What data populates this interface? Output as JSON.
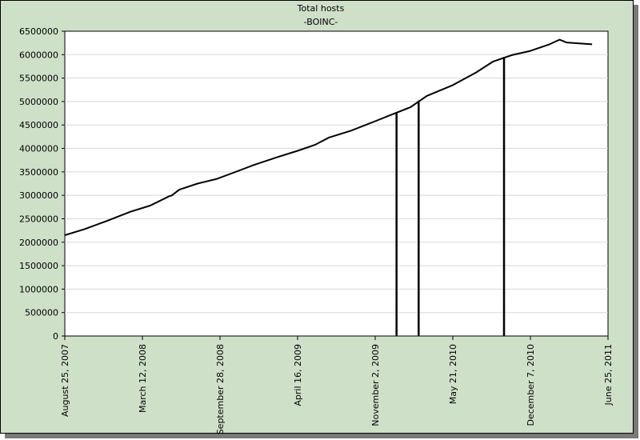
{
  "chart_data": {
    "type": "line",
    "title": "Total hosts",
    "subtitle": "-BOINC-",
    "xlabel": "",
    "ylabel": "",
    "x_range": [
      "2007-08-25",
      "2011-06-25"
    ],
    "ylim": [
      0,
      6500000
    ],
    "grid": true,
    "legend": "none",
    "line_color": "#000000",
    "plot_background": "#ffffff",
    "frame_background": "#cfe0c9",
    "y_ticks": [
      "0",
      "500000",
      "1000000",
      "1500000",
      "2000000",
      "2500000",
      "3000000",
      "3500000",
      "4000000",
      "4500000",
      "5000000",
      "5500000",
      "6000000",
      "6500000"
    ],
    "y_tick_values": [
      0,
      500000,
      1000000,
      1500000,
      2000000,
      2500000,
      3000000,
      3500000,
      4000000,
      4500000,
      5000000,
      5500000,
      6000000,
      6500000
    ],
    "x_ticks": [
      "August 25, 2007",
      "March 12, 2008",
      "September 28, 2008",
      "April 16, 2009",
      "November 2, 2009",
      "May 21, 2010",
      "December 7, 2010",
      "June 25, 2011"
    ],
    "x_tick_values": [
      "2007-08-25",
      "2008-03-12",
      "2008-09-28",
      "2009-04-16",
      "2009-11-02",
      "2010-05-21",
      "2010-12-07",
      "2011-06-25"
    ],
    "series": [
      {
        "points": [
          [
            "2007-08-25",
            2150000
          ],
          [
            "2007-10-15",
            2280000
          ],
          [
            "2007-12-10",
            2450000
          ],
          [
            "2008-02-10",
            2650000
          ],
          [
            "2008-04-01",
            2780000
          ],
          [
            "2008-05-20",
            2980000
          ],
          [
            "2008-05-27",
            3000000
          ],
          [
            "2008-06-15",
            3120000
          ],
          [
            "2008-08-01",
            3250000
          ],
          [
            "2008-09-20",
            3350000
          ],
          [
            "2008-11-01",
            3480000
          ],
          [
            "2008-12-25",
            3650000
          ],
          [
            "2009-02-25",
            3820000
          ],
          [
            "2009-04-16",
            3950000
          ],
          [
            "2009-06-01",
            4080000
          ],
          [
            "2009-07-05",
            4230000
          ],
          [
            "2009-09-01",
            4380000
          ],
          [
            "2009-11-02",
            4580000
          ],
          [
            "2009-12-20",
            4740000
          ],
          [
            "2010-02-01",
            4880000
          ],
          [
            "2010-03-15",
            5120000
          ],
          [
            "2010-05-21",
            5350000
          ],
          [
            "2010-07-20",
            5620000
          ],
          [
            "2010-09-01",
            5850000
          ],
          [
            "2010-10-20",
            5990000
          ],
          [
            "2010-12-07",
            6080000
          ],
          [
            "2011-01-25",
            6220000
          ],
          [
            "2011-02-20",
            6320000
          ],
          [
            "2011-03-10",
            6260000
          ],
          [
            "2011-05-15",
            6220000
          ]
        ]
      }
    ],
    "drops": [
      {
        "date": "2009-12-27",
        "from": 4760000,
        "to": 0
      },
      {
        "date": "2010-02-22",
        "from": 5020000,
        "to": 0
      },
      {
        "date": "2010-09-30",
        "from": 5950000,
        "to": 0
      }
    ]
  }
}
